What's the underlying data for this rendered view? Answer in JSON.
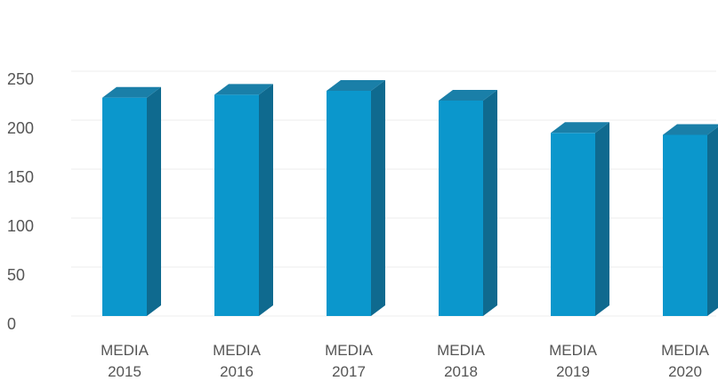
{
  "chart_data": {
    "type": "bar",
    "style": "3d-column",
    "categories": [
      [
        "MEDIA",
        "2015"
      ],
      [
        "MEDIA",
        "2016"
      ],
      [
        "MEDIA",
        "2017"
      ],
      [
        "MEDIA",
        "2018"
      ],
      [
        "MEDIA",
        "2019"
      ],
      [
        "MEDIA",
        "2020"
      ]
    ],
    "values": [
      223,
      226,
      230,
      220,
      187,
      185
    ],
    "ylim": [
      0,
      250
    ],
    "yticks": [
      0,
      50,
      100,
      150,
      200,
      250
    ],
    "grid": true,
    "legend": "none",
    "colors": {
      "front": "#0b97cc",
      "top": "#1a7fa8",
      "side": "#0f6a8f",
      "tick_text": "#555555",
      "grid": "#eeeeee"
    }
  }
}
